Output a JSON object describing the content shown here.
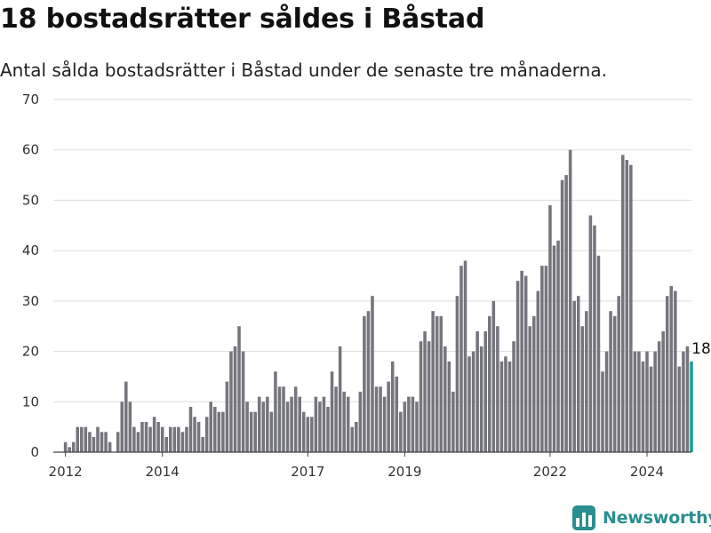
{
  "title": "18 bostadsrätter såldes i Båstad",
  "subtitle": "Antal sålda bostadsrätter i Båstad under de senaste tre månaderna.",
  "brand": {
    "name": "Newsworthy",
    "icon": "bar-chart-logo-icon",
    "color": "#2a8f8f"
  },
  "colors": {
    "bar": "#75757d",
    "highlight": "#1a9e98",
    "grid": "#dddddd"
  },
  "chart_data": {
    "type": "bar",
    "x_start": "2011-10",
    "x_end": "2024-12",
    "x_ticks": [
      {
        "label": "2012",
        "date": "2012-01"
      },
      {
        "label": "2014",
        "date": "2014-01"
      },
      {
        "label": "2017",
        "date": "2017-01"
      },
      {
        "label": "2019",
        "date": "2019-01"
      },
      {
        "label": "2022",
        "date": "2022-01"
      },
      {
        "label": "2024",
        "date": "2024-01"
      }
    ],
    "ylim": [
      0,
      70
    ],
    "y_ticks": [
      0,
      10,
      20,
      30,
      40,
      50,
      60,
      70
    ],
    "grid": true,
    "series": [
      {
        "start": "2012-01",
        "values": [
          2,
          1,
          2,
          5,
          5,
          5,
          4,
          3,
          5,
          4,
          4,
          2,
          0,
          4,
          10,
          14,
          10,
          5,
          4,
          6,
          6,
          5,
          7,
          6,
          5,
          3,
          5,
          5,
          5,
          4,
          5,
          9,
          7,
          6,
          3,
          7,
          10,
          9,
          8,
          8,
          14,
          20,
          21,
          25,
          20,
          10,
          8,
          8,
          11,
          10,
          11,
          8,
          16,
          13,
          13,
          10,
          11,
          13,
          11,
          8,
          7,
          7,
          11,
          10,
          11,
          9,
          16,
          13,
          21,
          12,
          11,
          5,
          6,
          12,
          27,
          28,
          31,
          13,
          13,
          11,
          14,
          18,
          15,
          8,
          10,
          11,
          11,
          10,
          22,
          24,
          22,
          28,
          27,
          27,
          21,
          18,
          12,
          31,
          37,
          38,
          19,
          20,
          24,
          21,
          24,
          27,
          30,
          25,
          18,
          19,
          18,
          22,
          34,
          36,
          35,
          25,
          27,
          32,
          37,
          37,
          49,
          41,
          42,
          54,
          55,
          60,
          30,
          31,
          25,
          28,
          47,
          45,
          39,
          16,
          20,
          28,
          27,
          31,
          59,
          58,
          57,
          20,
          20,
          18,
          20,
          17,
          20,
          22,
          24,
          31,
          33,
          32,
          17,
          20,
          21,
          18
        ]
      }
    ],
    "highlight": {
      "index": 155,
      "value": 18,
      "label": "18"
    }
  }
}
